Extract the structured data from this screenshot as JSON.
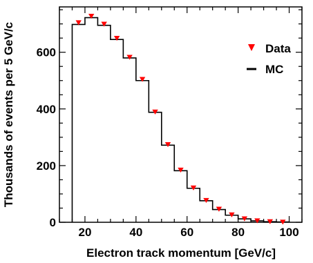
{
  "chart_data": {
    "type": "histogram",
    "title": "",
    "xlabel": "Electron track momentum [GeV/c]",
    "ylabel": "Thousands of events per 5 GeV/c",
    "xlim": [
      10,
      105
    ],
    "ylim": [
      0,
      760
    ],
    "x_ticks": [
      20,
      40,
      60,
      80,
      100
    ],
    "y_ticks": [
      0,
      200,
      400,
      600
    ],
    "bin_width": 5,
    "legend": {
      "position": "top-right"
    },
    "series": [
      {
        "name": "Data",
        "style": "markers",
        "marker": "triangle-down",
        "color": "#ff0000",
        "x": [
          17.5,
          22.5,
          27.5,
          32.5,
          37.5,
          42.5,
          47.5,
          52.5,
          57.5,
          62.5,
          67.5,
          72.5,
          77.5,
          82.5,
          87.5,
          92.5,
          97.5
        ],
        "values": [
          705,
          728,
          700,
          650,
          583,
          505,
          390,
          275,
          185,
          122,
          78,
          47,
          27,
          13,
          6,
          3,
          1.5
        ]
      },
      {
        "name": "MC",
        "style": "step",
        "color": "#000000",
        "bin_edges": [
          15,
          20,
          25,
          30,
          35,
          40,
          45,
          50,
          55,
          60,
          65,
          70,
          75,
          80,
          85,
          90,
          95,
          100
        ],
        "values": [
          698,
          722,
          695,
          645,
          580,
          500,
          388,
          272,
          182,
          120,
          76,
          45,
          25,
          12,
          5,
          2,
          1
        ]
      }
    ]
  }
}
